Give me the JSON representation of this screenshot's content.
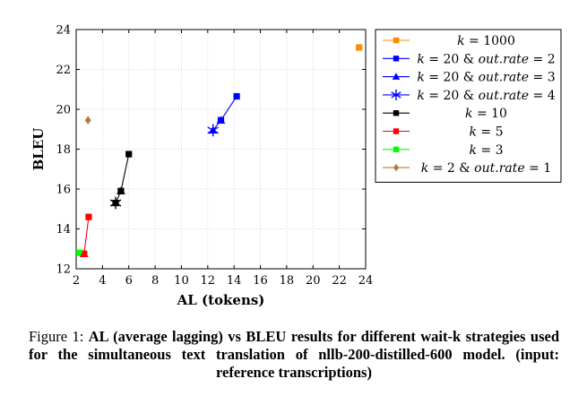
{
  "chart_data": {
    "type": "line",
    "title": "",
    "xlabel": "AL (tokens)",
    "ylabel": "BLEU",
    "xlim": [
      2,
      24
    ],
    "ylim": [
      12,
      24
    ],
    "xticks": [
      2,
      4,
      6,
      8,
      10,
      12,
      14,
      16,
      18,
      20,
      22,
      24
    ],
    "yticks": [
      12,
      14,
      16,
      18,
      20,
      22,
      24
    ],
    "grid": true,
    "legend_position": "outside-right",
    "series": [
      {
        "name": "k = 1000",
        "color": "#ff8c00",
        "marker": "square",
        "points": [
          {
            "x": 23.5,
            "y": 23.1
          }
        ]
      },
      {
        "name": "k = 20 & out.rate = 2",
        "color": "#0000ff",
        "marker": "square",
        "points": [
          {
            "x": 13.0,
            "y": 19.45
          },
          {
            "x": 14.2,
            "y": 20.65
          }
        ]
      },
      {
        "name": "k = 20 & out.rate = 3",
        "color": "#0000ff",
        "marker": "triangle",
        "points": [
          {
            "x": 12.4,
            "y": 18.95
          },
          {
            "x": 13.0,
            "y": 19.45
          }
        ]
      },
      {
        "name": "k = 20 & out.rate = 4",
        "color": "#0000ff",
        "marker": "star",
        "points": [
          {
            "x": 12.4,
            "y": 18.95
          }
        ]
      },
      {
        "name": "k = 10",
        "color": "#000000",
        "marker": "square",
        "points": [
          {
            "x": 5.0,
            "y": 15.3
          },
          {
            "x": 5.4,
            "y": 15.9
          },
          {
            "x": 6.0,
            "y": 17.75
          }
        ]
      },
      {
        "name": "k = 5",
        "color": "#ff0000",
        "marker": "square",
        "points": [
          {
            "x": 2.6,
            "y": 12.75
          },
          {
            "x": 2.95,
            "y": 14.6
          }
        ]
      },
      {
        "name": "k = 3",
        "color": "#00ff00",
        "marker": "square",
        "points": [
          {
            "x": 2.25,
            "y": 12.8
          }
        ]
      },
      {
        "name": "k = 2 & out.rate = 1",
        "color": "#b07a3c",
        "marker": "diamond",
        "points": [
          {
            "x": 2.9,
            "y": 19.45
          }
        ]
      }
    ],
    "extra_markers": [
      {
        "series": "k = 10",
        "marker": "star",
        "x": 5.0,
        "y": 15.3
      },
      {
        "series": "k = 10",
        "marker": "triangle",
        "x": 5.4,
        "y": 15.9
      },
      {
        "series": "k = 5",
        "marker": "triangle",
        "x": 2.6,
        "y": 12.75
      }
    ]
  },
  "caption": {
    "label": "Figure 1:",
    "text": "AL (average lagging) vs BLEU results for different wait-k strategies used for the simultaneous text translation of nllb-200-distilled-600 model. (input: reference transcriptions)"
  }
}
